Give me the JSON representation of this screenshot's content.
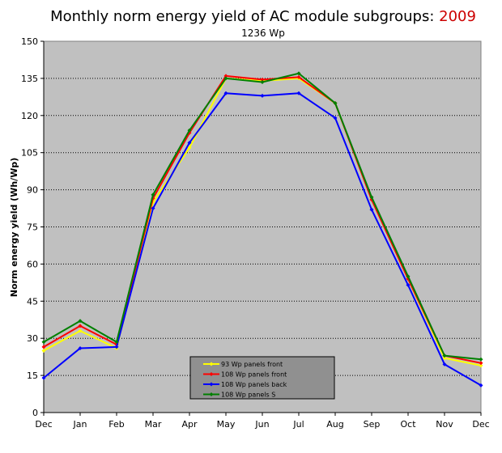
{
  "chart_data": {
    "type": "line",
    "title": "Monthly norm energy yield of AC module subgroups: ",
    "title_year": "2009",
    "subtitle": "1236 Wp",
    "xlabel": "",
    "ylabel": "Norm energy yield (Wh/Wp)",
    "categories": [
      "Dec",
      "Jan",
      "Feb",
      "Mar",
      "Apr",
      "May",
      "Jun",
      "Jul",
      "Aug",
      "Sep",
      "Oct",
      "Nov",
      "Dec"
    ],
    "ylim": [
      0,
      150
    ],
    "yticks": [
      0,
      15,
      30,
      45,
      60,
      75,
      90,
      105,
      120,
      135,
      150
    ],
    "grid": "horizontal",
    "legend_position": "bottom-center",
    "plot_background": "#c0c0c0",
    "series": [
      {
        "name": "93 Wp panels front",
        "color": "#ffff00",
        "values": [
          25,
          33,
          26,
          85,
          107,
          135,
          134,
          135,
          125,
          86,
          54,
          22,
          19
        ]
      },
      {
        "name": "108 Wp panels front",
        "color": "#ff0000",
        "values": [
          26.5,
          35,
          27.5,
          86.5,
          113,
          136,
          134.5,
          135.5,
          125,
          86,
          54,
          23,
          20
        ]
      },
      {
        "name": "108 Wp panels back",
        "color": "#0000ff",
        "values": [
          14,
          26,
          26.5,
          82.5,
          109,
          129,
          128,
          129,
          119,
          82,
          51.5,
          19.5,
          11
        ]
      },
      {
        "name": "108 Wp panels S",
        "color": "#008000",
        "values": [
          28.5,
          37,
          28.5,
          88,
          114,
          135,
          133.5,
          137,
          125,
          87,
          55,
          23,
          21.5
        ]
      }
    ]
  }
}
